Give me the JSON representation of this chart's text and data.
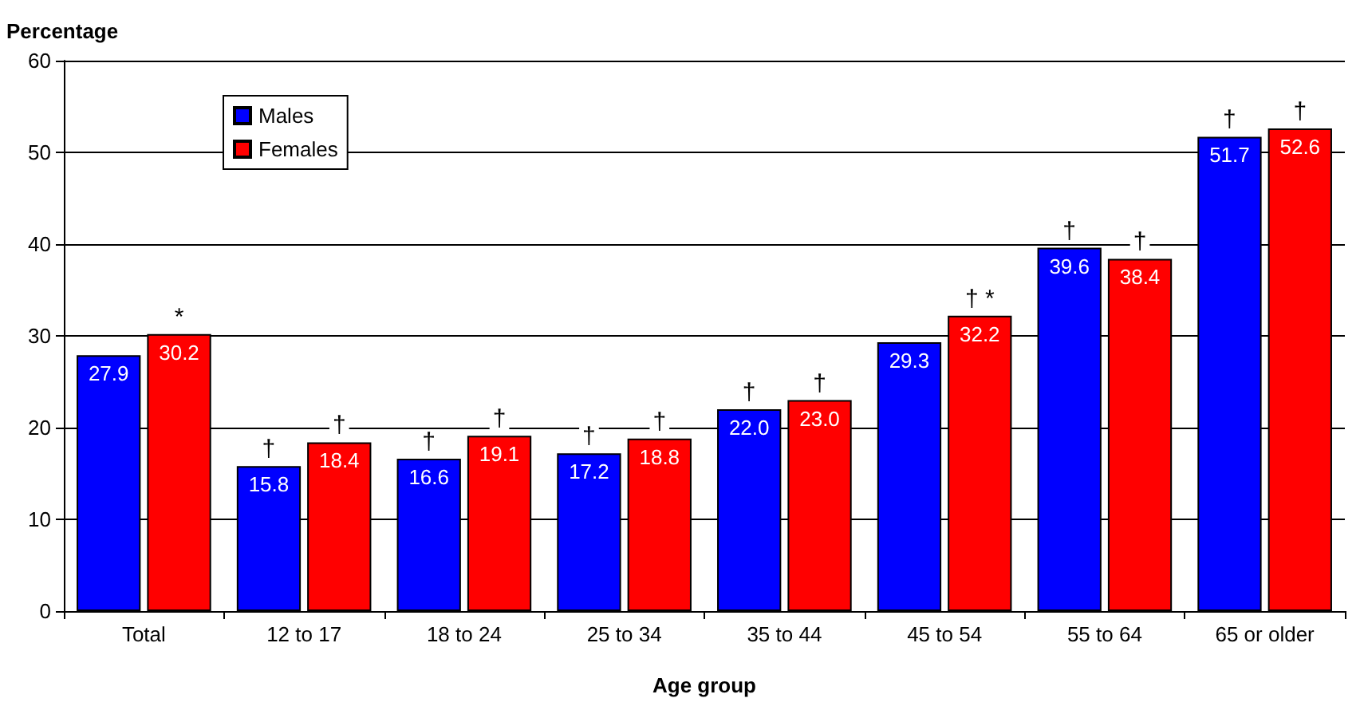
{
  "chart_data": {
    "type": "bar",
    "xlabel": "Age group",
    "ylabel": "Percentage",
    "categories": [
      "Total",
      "12 to 17",
      "18 to 24",
      "25 to 34",
      "35 to 44",
      "45 to 54",
      "55 to 64",
      "65 or older"
    ],
    "series": [
      {
        "name": "Males",
        "color": "#0000ff",
        "values": [
          27.9,
          15.8,
          16.6,
          17.2,
          22.0,
          29.3,
          39.6,
          51.7
        ],
        "value_labels": [
          "27.9",
          "15.8",
          "16.6",
          "17.2",
          "22.0",
          "29.3",
          "39.6",
          "51.7"
        ]
      },
      {
        "name": "Females",
        "color": "#ff0000",
        "values": [
          30.2,
          18.4,
          19.1,
          18.8,
          23.0,
          32.2,
          38.4,
          52.6
        ],
        "value_labels": [
          "30.2",
          "18.4",
          "19.1",
          "18.8",
          "23.0",
          "32.2",
          "38.4",
          "52.6"
        ]
      }
    ],
    "ylim": [
      0,
      60
    ],
    "yticks": [
      0,
      10,
      20,
      30,
      40,
      50,
      60
    ],
    "grid": "y",
    "legend": "top left",
    "annotations": [
      {
        "text": "*",
        "x": "Total",
        "y": 30.2
      },
      {
        "text": "†",
        "x": "12 to 17",
        "y": 15.8
      },
      {
        "text": "†",
        "x": "12 to 17",
        "y": 18.4
      },
      {
        "text": "†",
        "x": "18 to 24",
        "y": 16.6
      },
      {
        "text": "†",
        "x": "18 to 24",
        "y": 19.1
      },
      {
        "text": "†",
        "x": "25 to 34",
        "y": 17.2
      },
      {
        "text": "†",
        "x": "25 to 34",
        "y": 18.8
      },
      {
        "text": "†",
        "x": "35 to 44",
        "y": 22.0
      },
      {
        "text": "†",
        "x": "35 to 44",
        "y": 23.0
      },
      {
        "text": "† *",
        "x": "45 to 54",
        "y": 32.2
      },
      {
        "text": "†",
        "x": "55 to 64",
        "y": 39.6
      },
      {
        "text": "†",
        "x": "55 to 64",
        "y": 38.4
      },
      {
        "text": "†",
        "x": "65 or older",
        "y": 51.7
      },
      {
        "text": "†",
        "x": "65 or older",
        "y": 52.6
      }
    ]
  }
}
